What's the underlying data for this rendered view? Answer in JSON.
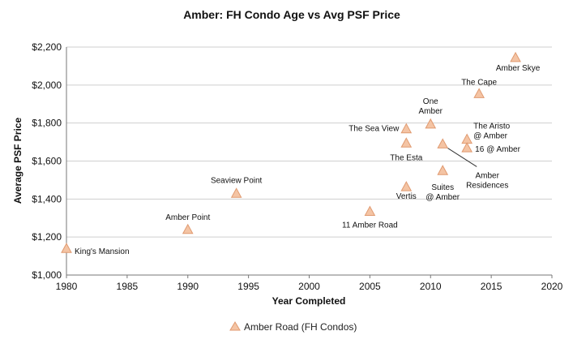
{
  "chart_data": {
    "type": "scatter",
    "title": "Amber: FH Condo Age vs Avg PSF Price",
    "xlabel": "Year Completed",
    "ylabel": "Average PSF Price",
    "xlim": [
      1980,
      2020
    ],
    "ylim": [
      1000,
      2200
    ],
    "x_ticks": [
      "1980",
      "1985",
      "1990",
      "1995",
      "2000",
      "2005",
      "2010",
      "2015",
      "2020"
    ],
    "y_ticks": [
      "$1,000",
      "$1,200",
      "$1,400",
      "$1,600",
      "$1,800",
      "$2,000",
      "$2,200"
    ],
    "grid": "horizontal",
    "legend_position": "bottom",
    "marker_color": "#f4c4a4",
    "marker_stroke": "#e09a70",
    "series": [
      {
        "name": "Amber Road (FH Condos)",
        "points": [
          {
            "label": "King's Mansion",
            "x": 1980,
            "y": 1140
          },
          {
            "label": "Amber Point",
            "x": 1990,
            "y": 1240
          },
          {
            "label": "Seaview Point",
            "x": 1994,
            "y": 1430
          },
          {
            "label": "11 Amber Road",
            "x": 2005,
            "y": 1335
          },
          {
            "label": "Vertis",
            "x": 2008,
            "y": 1465
          },
          {
            "label": "The Esta",
            "x": 2008,
            "y": 1695
          },
          {
            "label": "The Sea View",
            "x": 2008,
            "y": 1770
          },
          {
            "label": "One Amber",
            "x": 2010,
            "y": 1795
          },
          {
            "label": "Amber Residences",
            "x": 2011,
            "y": 1690
          },
          {
            "label": "Suites @ Amber",
            "x": 2011,
            "y": 1550
          },
          {
            "label": "The Aristo @ Amber",
            "x": 2013,
            "y": 1715
          },
          {
            "label": "16 @ Amber",
            "x": 2013,
            "y": 1670
          },
          {
            "label": "The Cape",
            "x": 2014,
            "y": 1955
          },
          {
            "label": "Amber Skye",
            "x": 2017,
            "y": 2145
          }
        ]
      }
    ]
  }
}
